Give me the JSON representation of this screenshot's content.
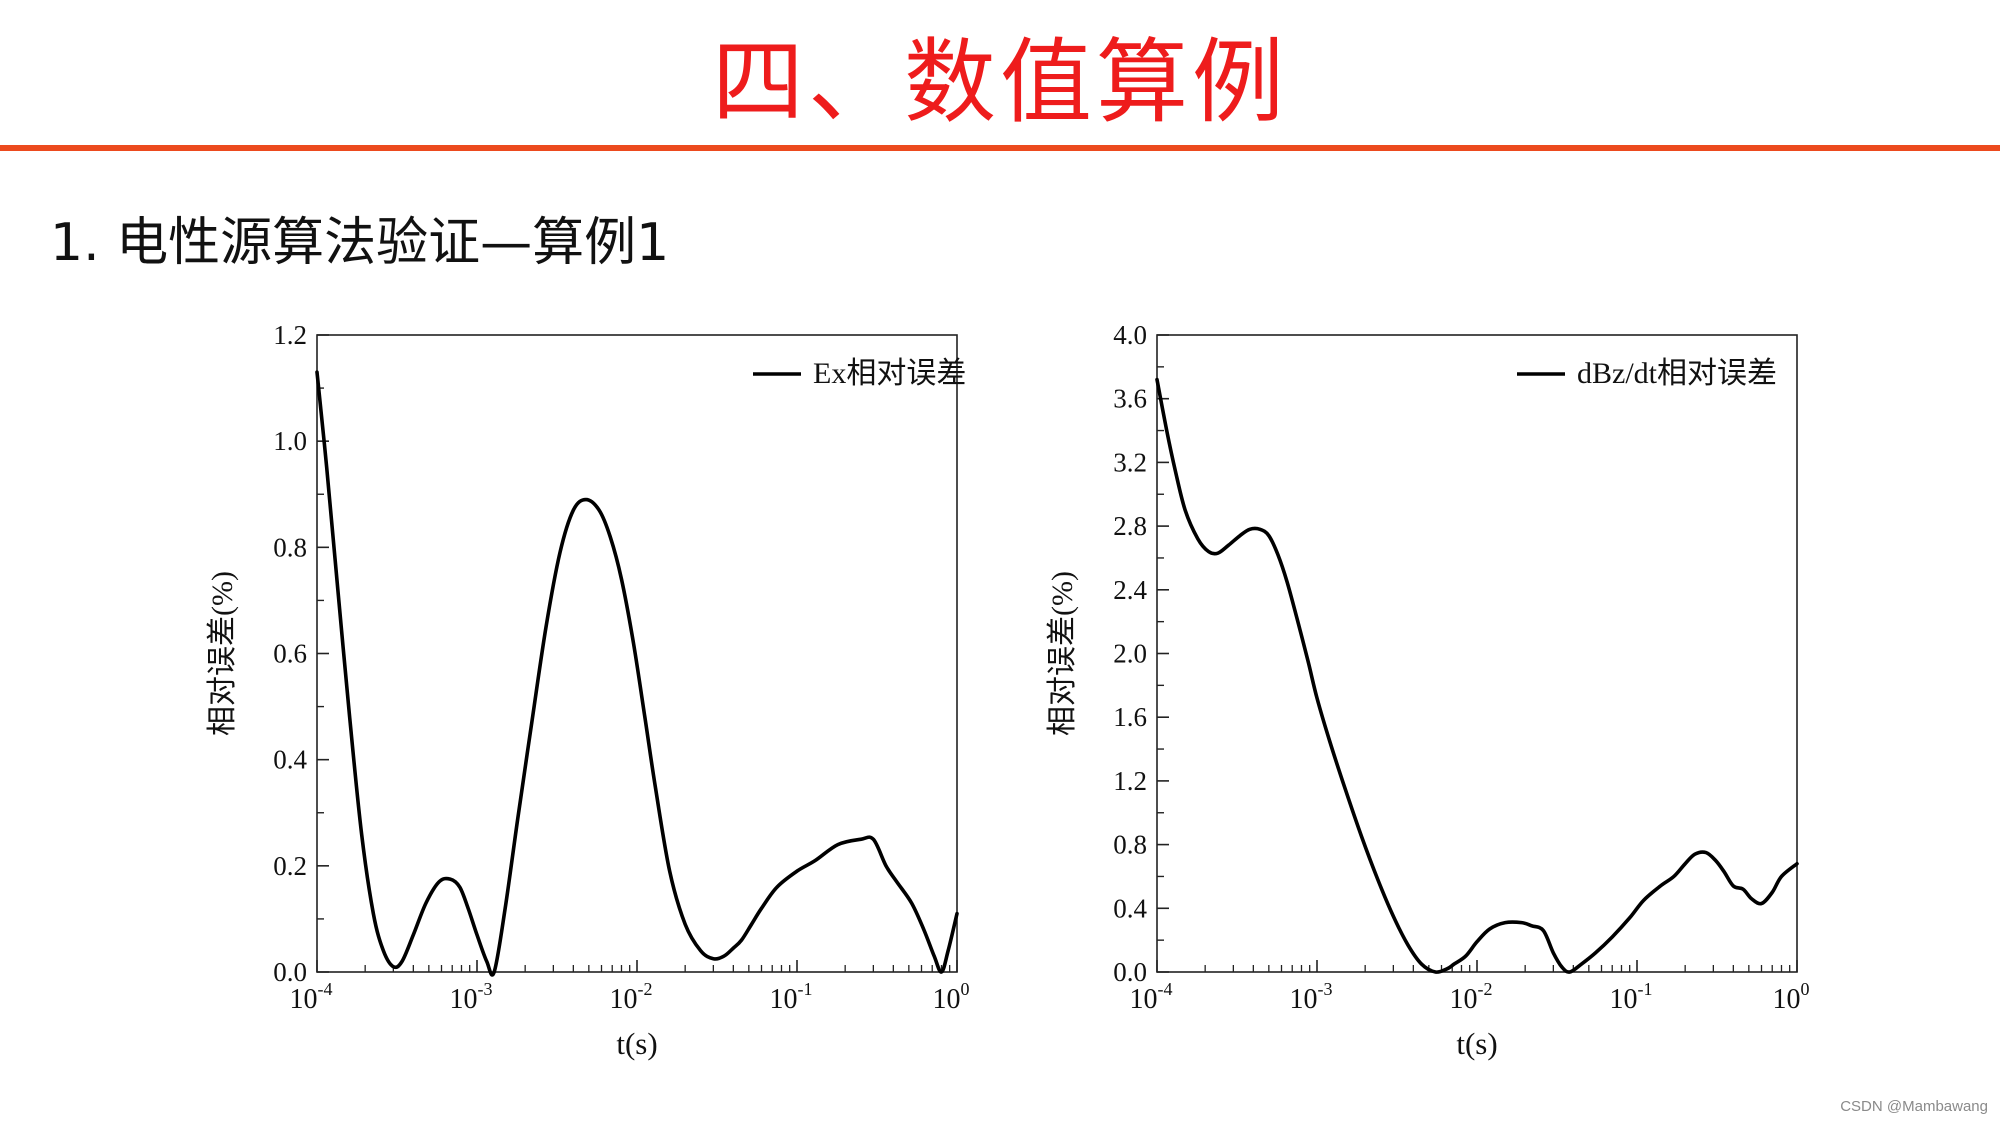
{
  "slide": {
    "title": "四、数值算例",
    "section_heading": "1. 电性源算法验证—算例1",
    "title_color": "#ee1c1c",
    "rule_color": "#ec4a1e",
    "watermark": "CSDN @Mambawang"
  },
  "chart_data": [
    {
      "type": "line",
      "legend": [
        "Ex相对误差"
      ],
      "legend_position": "top-right",
      "xlabel": "t(s)",
      "ylabel": "相对误差(%)",
      "xscale": "log",
      "xlim": [
        0.0001,
        1
      ],
      "ylim": [
        0,
        1.2
      ],
      "x_ticks": [
        0.0001,
        0.001,
        0.01,
        0.1,
        1
      ],
      "x_tick_labels": [
        [
          "10",
          "-4"
        ],
        [
          "10",
          "-3"
        ],
        [
          "10",
          "-2"
        ],
        [
          "10",
          "-1"
        ],
        [
          "10",
          "0"
        ]
      ],
      "y_ticks": [
        0,
        0.2,
        0.4,
        0.6,
        0.8,
        1.0,
        1.2
      ],
      "y_tick_labels": [
        "0.0",
        "0.2",
        "0.4",
        "0.6",
        "0.8",
        "1.0",
        "1.2"
      ],
      "grid": false,
      "series": [
        {
          "name": "Ex相对误差",
          "color": "#000000",
          "x": [
            0.0001,
            0.000115,
            0.000135,
            0.00016,
            0.00019,
            0.000225,
            0.00026,
            0.0003,
            0.00034,
            0.0004,
            0.00048,
            0.00058,
            0.00068,
            0.00078,
            0.00088,
            0.001,
            0.00115,
            0.00128,
            0.0015,
            0.0018,
            0.0022,
            0.0027,
            0.0033,
            0.004,
            0.0048,
            0.0058,
            0.0068,
            0.008,
            0.0095,
            0.0112,
            0.013,
            0.016,
            0.02,
            0.025,
            0.03,
            0.035,
            0.04,
            0.045,
            0.052,
            0.06,
            0.075,
            0.1,
            0.13,
            0.18,
            0.25,
            0.3,
            0.36,
            0.42,
            0.52,
            0.62,
            0.72,
            0.8,
            0.88,
            1.0
          ],
          "y": [
            1.13,
            0.95,
            0.72,
            0.48,
            0.26,
            0.11,
            0.04,
            0.01,
            0.02,
            0.07,
            0.13,
            0.17,
            0.175,
            0.16,
            0.12,
            0.07,
            0.02,
            0.0,
            0.12,
            0.29,
            0.47,
            0.65,
            0.79,
            0.87,
            0.89,
            0.87,
            0.82,
            0.74,
            0.62,
            0.48,
            0.35,
            0.19,
            0.09,
            0.04,
            0.025,
            0.03,
            0.045,
            0.06,
            0.09,
            0.12,
            0.16,
            0.19,
            0.21,
            0.24,
            0.25,
            0.25,
            0.2,
            0.17,
            0.13,
            0.08,
            0.03,
            0.0,
            0.04,
            0.11
          ]
        }
      ]
    },
    {
      "type": "line",
      "legend": [
        "dBz/dt相对误差"
      ],
      "legend_position": "top-right",
      "xlabel": "t(s)",
      "ylabel": "相对误差(%)",
      "xscale": "log",
      "xlim": [
        0.0001,
        1
      ],
      "ylim": [
        0,
        4.0
      ],
      "x_ticks": [
        0.0001,
        0.001,
        0.01,
        0.1,
        1
      ],
      "x_tick_labels": [
        [
          "10",
          "-4"
        ],
        [
          "10",
          "-3"
        ],
        [
          "10",
          "-2"
        ],
        [
          "10",
          "-1"
        ],
        [
          "10",
          "0"
        ]
      ],
      "y_ticks": [
        0,
        0.4,
        0.8,
        1.2,
        1.6,
        2.0,
        2.4,
        2.8,
        3.2,
        3.6,
        4.0
      ],
      "y_tick_labels": [
        "0.0",
        "0.4",
        "0.8",
        "1.2",
        "1.6",
        "2.0",
        "2.4",
        "2.8",
        "3.2",
        "3.6",
        "4.0"
      ],
      "grid": false,
      "series": [
        {
          "name": "dBz/dt相对误差",
          "color": "#000000",
          "x": [
            0.0001,
            0.000115,
            0.00013,
            0.00015,
            0.00018,
            0.00021,
            0.00024,
            0.00028,
            0.00033,
            0.00038,
            0.00044,
            0.0005,
            0.00057,
            0.00065,
            0.00075,
            0.00088,
            0.001,
            0.0012,
            0.0015,
            0.0019,
            0.0024,
            0.003,
            0.0037,
            0.0045,
            0.0055,
            0.0065,
            0.0072,
            0.0085,
            0.01,
            0.012,
            0.015,
            0.019,
            0.022,
            0.026,
            0.03,
            0.034,
            0.038,
            0.045,
            0.055,
            0.07,
            0.09,
            0.11,
            0.14,
            0.17,
            0.2,
            0.23,
            0.27,
            0.31,
            0.35,
            0.4,
            0.46,
            0.52,
            0.6,
            0.7,
            0.8,
            1.0
          ],
          "y": [
            3.72,
            3.4,
            3.15,
            2.9,
            2.72,
            2.64,
            2.63,
            2.68,
            2.74,
            2.78,
            2.78,
            2.74,
            2.62,
            2.45,
            2.22,
            1.95,
            1.72,
            1.45,
            1.15,
            0.85,
            0.58,
            0.35,
            0.17,
            0.05,
            0.0,
            0.02,
            0.05,
            0.1,
            0.19,
            0.27,
            0.31,
            0.31,
            0.29,
            0.26,
            0.12,
            0.03,
            0.0,
            0.05,
            0.12,
            0.22,
            0.34,
            0.45,
            0.54,
            0.6,
            0.68,
            0.74,
            0.75,
            0.7,
            0.63,
            0.54,
            0.52,
            0.46,
            0.43,
            0.5,
            0.6,
            0.68
          ]
        }
      ]
    }
  ]
}
